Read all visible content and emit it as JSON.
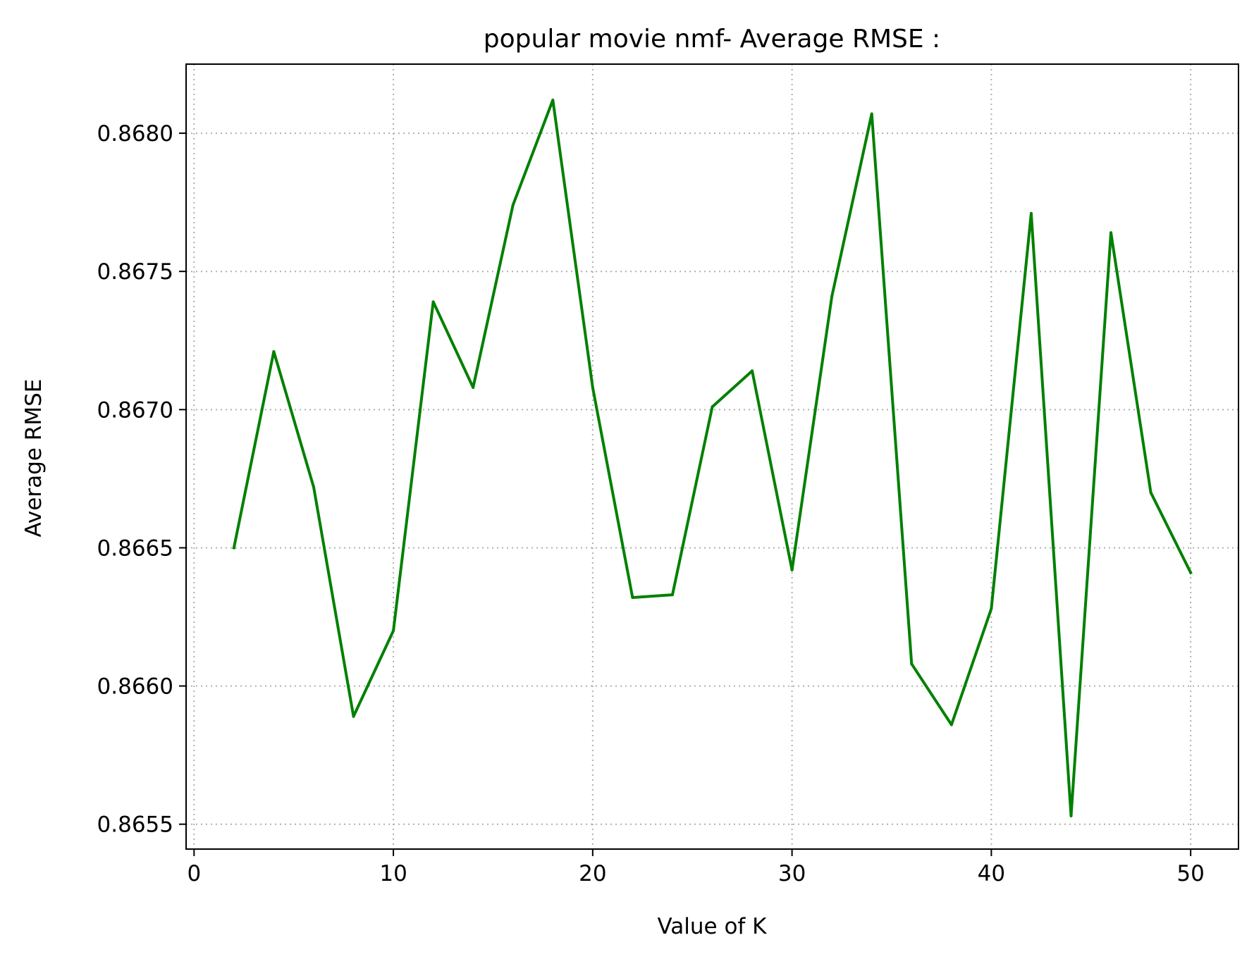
{
  "chart_data": {
    "type": "line",
    "title": "popular movie nmf- Average RMSE :",
    "xlabel": "Value of K",
    "ylabel": "Average RMSE",
    "xlim": [
      -0.4,
      52.4
    ],
    "ylim": [
      0.86541,
      0.86825
    ],
    "xticks": [
      0,
      10,
      20,
      30,
      40,
      50
    ],
    "xtick_labels": [
      "0",
      "10",
      "20",
      "30",
      "40",
      "50"
    ],
    "yticks": [
      0.8655,
      0.866,
      0.8665,
      0.867,
      0.8675,
      0.868
    ],
    "ytick_labels": [
      "0.8655",
      "0.8660",
      "0.8665",
      "0.8670",
      "0.8675",
      "0.8680"
    ],
    "grid": true,
    "legend": "none",
    "series": [
      {
        "color": "#008000",
        "x": [
          2,
          4,
          6,
          8,
          10,
          12,
          14,
          16,
          18,
          20,
          22,
          24,
          26,
          28,
          30,
          32,
          34,
          36,
          38,
          40,
          42,
          44,
          46,
          48,
          50
        ],
        "y": [
          0.8665,
          0.86721,
          0.86672,
          0.86589,
          0.8662,
          0.86739,
          0.86708,
          0.86774,
          0.86812,
          0.86708,
          0.86632,
          0.86633,
          0.86701,
          0.86714,
          0.86642,
          0.86741,
          0.86807,
          0.86608,
          0.86586,
          0.86628,
          0.86771,
          0.86553,
          0.86764,
          0.8667,
          0.86641
        ]
      }
    ]
  }
}
